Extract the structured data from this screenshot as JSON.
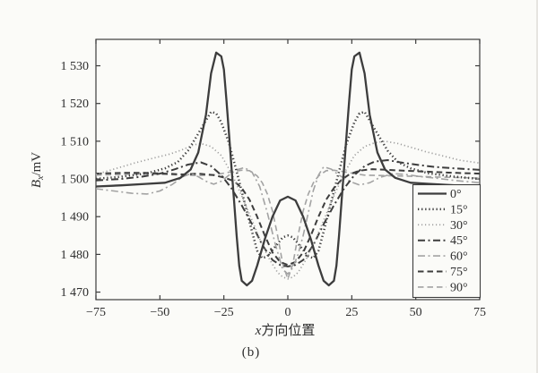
{
  "page": {
    "caption": "(b)"
  },
  "chart_data": {
    "type": "line",
    "title": "",
    "xlabel": {
      "italic": "x",
      "text": "方向位置"
    },
    "ylabel": {
      "base": "B",
      "sub": "x",
      "unit": "/mV"
    },
    "xlim": [
      -75,
      75
    ],
    "ylim": [
      1468,
      1537
    ],
    "grid": false,
    "axis_color": "#3c3c3c",
    "plot_bg": "#fbfbf8",
    "legend": {
      "position": "inside lower right"
    },
    "xticks": [
      {
        "v": -75,
        "label": "−75"
      },
      {
        "v": -50,
        "label": "−50"
      },
      {
        "v": -25,
        "label": "−25"
      },
      {
        "v": 0,
        "label": "0"
      },
      {
        "v": 25,
        "label": "25"
      },
      {
        "v": 50,
        "label": "50"
      },
      {
        "v": 75,
        "label": "75"
      }
    ],
    "yticks": [
      {
        "v": 1470,
        "label": "1 470"
      },
      {
        "v": 1480,
        "label": "1 480"
      },
      {
        "v": 1490,
        "label": "1 490"
      },
      {
        "v": 1500,
        "label": "1 500"
      },
      {
        "v": 1510,
        "label": "1 510"
      },
      {
        "v": 1520,
        "label": "1 520"
      },
      {
        "v": 1530,
        "label": "1 530"
      }
    ],
    "series": [
      {
        "name": "0°",
        "color": "#3d3d3d",
        "width": 2.3,
        "dash": "",
        "points": [
          [
            -75,
            1498
          ],
          [
            -65,
            1498.3
          ],
          [
            -55,
            1498.7
          ],
          [
            -48,
            1499
          ],
          [
            -42,
            1500.3
          ],
          [
            -38,
            1502.5
          ],
          [
            -35,
            1507
          ],
          [
            -32,
            1517
          ],
          [
            -30,
            1528
          ],
          [
            -28,
            1533.5
          ],
          [
            -26,
            1532.5
          ],
          [
            -25,
            1529
          ],
          [
            -24,
            1521
          ],
          [
            -23,
            1512
          ],
          [
            -22,
            1503
          ],
          [
            -21,
            1494
          ],
          [
            -20,
            1485
          ],
          [
            -19,
            1477
          ],
          [
            -18,
            1473
          ],
          [
            -16,
            1471.8
          ],
          [
            -14,
            1473
          ],
          [
            -12,
            1477
          ],
          [
            -9,
            1484
          ],
          [
            -6,
            1490
          ],
          [
            -3,
            1494.3
          ],
          [
            0,
            1495.3
          ],
          [
            3,
            1494.3
          ],
          [
            6,
            1490
          ],
          [
            9,
            1484
          ],
          [
            12,
            1477
          ],
          [
            14,
            1473
          ],
          [
            16,
            1471.8
          ],
          [
            18,
            1473
          ],
          [
            19,
            1477
          ],
          [
            20,
            1485
          ],
          [
            21,
            1494
          ],
          [
            22,
            1503
          ],
          [
            23,
            1512
          ],
          [
            24,
            1521
          ],
          [
            25,
            1529
          ],
          [
            26,
            1532.5
          ],
          [
            28,
            1533.5
          ],
          [
            30,
            1528
          ],
          [
            32,
            1517
          ],
          [
            35,
            1507
          ],
          [
            38,
            1502.5
          ],
          [
            42,
            1500.3
          ],
          [
            48,
            1499
          ],
          [
            55,
            1498.7
          ],
          [
            65,
            1498.3
          ],
          [
            75,
            1498
          ]
        ]
      },
      {
        "name": "15°",
        "color": "#3d3d3d",
        "width": 2.5,
        "dash": "1.3 2.8",
        "points": [
          [
            -75,
            1500
          ],
          [
            -65,
            1500.6
          ],
          [
            -55,
            1501.5
          ],
          [
            -48,
            1502.8
          ],
          [
            -43,
            1504.5
          ],
          [
            -39,
            1507.5
          ],
          [
            -35,
            1512
          ],
          [
            -32,
            1515.5
          ],
          [
            -30,
            1517.8
          ],
          [
            -28,
            1517.4
          ],
          [
            -26,
            1515
          ],
          [
            -23,
            1509.5
          ],
          [
            -20,
            1502
          ],
          [
            -17,
            1494
          ],
          [
            -14,
            1486
          ],
          [
            -12,
            1481
          ],
          [
            -10,
            1479
          ],
          [
            -8,
            1479.5
          ],
          [
            -5,
            1482
          ],
          [
            -2,
            1484.5
          ],
          [
            0,
            1485
          ],
          [
            2,
            1484.5
          ],
          [
            5,
            1482
          ],
          [
            8,
            1479.5
          ],
          [
            10,
            1479
          ],
          [
            12,
            1481
          ],
          [
            14,
            1486
          ],
          [
            17,
            1494
          ],
          [
            20,
            1502
          ],
          [
            23,
            1509.5
          ],
          [
            26,
            1515
          ],
          [
            28,
            1517.4
          ],
          [
            30,
            1517.8
          ],
          [
            32,
            1515.5
          ],
          [
            35,
            1512
          ],
          [
            39,
            1507.5
          ],
          [
            43,
            1504.5
          ],
          [
            48,
            1502.8
          ],
          [
            55,
            1501.5
          ],
          [
            65,
            1500.6
          ],
          [
            75,
            1500
          ]
        ]
      },
      {
        "name": "30°",
        "color": "#9e9e9e",
        "width": 1.7,
        "dash": "1.2 2.8",
        "points": [
          [
            -75,
            1501.2
          ],
          [
            -68,
            1502.6
          ],
          [
            -60,
            1504.2
          ],
          [
            -52,
            1505.6
          ],
          [
            -46,
            1506.6
          ],
          [
            -41,
            1507.8
          ],
          [
            -37,
            1509
          ],
          [
            -34,
            1509.4
          ],
          [
            -30,
            1508.6
          ],
          [
            -26,
            1506.2
          ],
          [
            -22,
            1501.5
          ],
          [
            -18,
            1495.5
          ],
          [
            -14,
            1489
          ],
          [
            -10,
            1482.5
          ],
          [
            -7,
            1478.5
          ],
          [
            -4,
            1475.2
          ],
          [
            -2,
            1474
          ],
          [
            0,
            1473.5
          ],
          [
            2,
            1474
          ],
          [
            4,
            1475.2
          ],
          [
            7,
            1478.5
          ],
          [
            10,
            1482.5
          ],
          [
            14,
            1489
          ],
          [
            18,
            1495.5
          ],
          [
            22,
            1501.5
          ],
          [
            26,
            1506.2
          ],
          [
            30,
            1508.6
          ],
          [
            34,
            1509.6
          ],
          [
            38,
            1510
          ],
          [
            43,
            1509.4
          ],
          [
            48,
            1508.4
          ],
          [
            54,
            1507.2
          ],
          [
            60,
            1506.2
          ],
          [
            67,
            1505
          ],
          [
            75,
            1504.2
          ]
        ]
      },
      {
        "name": "45°",
        "color": "#3d3d3d",
        "width": 2.0,
        "dash": "8 3.5 2 3.5",
        "points": [
          [
            -75,
            1499.6
          ],
          [
            -65,
            1500
          ],
          [
            -57,
            1500.6
          ],
          [
            -50,
            1501.4
          ],
          [
            -44,
            1502.6
          ],
          [
            -39,
            1503.8
          ],
          [
            -34,
            1504.4
          ],
          [
            -30,
            1503.4
          ],
          [
            -26,
            1501
          ],
          [
            -22,
            1497.5
          ],
          [
            -18,
            1493
          ],
          [
            -14,
            1488
          ],
          [
            -10,
            1482.5
          ],
          [
            -6,
            1478.5
          ],
          [
            -3,
            1477.2
          ],
          [
            0,
            1476.8
          ],
          [
            3,
            1477.2
          ],
          [
            6,
            1478.5
          ],
          [
            10,
            1482.5
          ],
          [
            14,
            1488
          ],
          [
            18,
            1493
          ],
          [
            22,
            1497.5
          ],
          [
            26,
            1501
          ],
          [
            30,
            1503.4
          ],
          [
            34,
            1504.6
          ],
          [
            39,
            1505
          ],
          [
            44,
            1504.4
          ],
          [
            50,
            1503.8
          ],
          [
            57,
            1503.2
          ],
          [
            65,
            1502.8
          ],
          [
            75,
            1502.4
          ]
        ]
      },
      {
        "name": "60°",
        "color": "#a3a3a3",
        "width": 1.6,
        "dash": "8 3.5 2 3.5",
        "points": [
          [
            -75,
            1497.4
          ],
          [
            -68,
            1496.8
          ],
          [
            -61,
            1496.2
          ],
          [
            -55,
            1496
          ],
          [
            -50,
            1496.8
          ],
          [
            -45,
            1498.6
          ],
          [
            -41,
            1500.6
          ],
          [
            -38,
            1501.4
          ],
          [
            -35,
            1500.6
          ],
          [
            -32,
            1499.4
          ],
          [
            -29,
            1498.6
          ],
          [
            -26,
            1499.4
          ],
          [
            -23,
            1501
          ],
          [
            -20,
            1502.4
          ],
          [
            -17,
            1503
          ],
          [
            -14,
            1501.8
          ],
          [
            -11,
            1498
          ],
          [
            -8,
            1491
          ],
          [
            -5,
            1483
          ],
          [
            -2,
            1476
          ],
          [
            0,
            1474.8
          ],
          [
            2,
            1476.5
          ],
          [
            4,
            1480
          ],
          [
            6,
            1485
          ],
          [
            8,
            1491
          ],
          [
            10,
            1497
          ],
          [
            12,
            1501
          ],
          [
            14,
            1503.2
          ],
          [
            17,
            1502.6
          ],
          [
            20,
            1501
          ],
          [
            24,
            1499.4
          ],
          [
            28,
            1498.4
          ],
          [
            32,
            1499
          ],
          [
            36,
            1500.4
          ],
          [
            41,
            1501.4
          ],
          [
            46,
            1501.2
          ],
          [
            52,
            1500.6
          ],
          [
            58,
            1500.2
          ],
          [
            65,
            1499.6
          ],
          [
            75,
            1499
          ]
        ]
      },
      {
        "name": "75°",
        "color": "#3d3d3d",
        "width": 2.0,
        "dash": "6.5 4",
        "points": [
          [
            -75,
            1501.4
          ],
          [
            -65,
            1501.6
          ],
          [
            -56,
            1501.6
          ],
          [
            -48,
            1501.4
          ],
          [
            -41,
            1501.2
          ],
          [
            -35,
            1501.4
          ],
          [
            -29,
            1501
          ],
          [
            -25,
            1500.4
          ],
          [
            -21,
            1499.4
          ],
          [
            -18,
            1497.6
          ],
          [
            -15,
            1494.5
          ],
          [
            -12,
            1490
          ],
          [
            -9,
            1485
          ],
          [
            -6,
            1480.5
          ],
          [
            -3,
            1478
          ],
          [
            0,
            1477.2
          ],
          [
            3,
            1478
          ],
          [
            6,
            1480.5
          ],
          [
            9,
            1485
          ],
          [
            12,
            1490
          ],
          [
            15,
            1494.5
          ],
          [
            18,
            1497.6
          ],
          [
            21,
            1499.8
          ],
          [
            24,
            1501.2
          ],
          [
            28,
            1502.2
          ],
          [
            33,
            1502.6
          ],
          [
            39,
            1502.4
          ],
          [
            45,
            1502.2
          ],
          [
            52,
            1502
          ],
          [
            59,
            1501.8
          ],
          [
            66,
            1501.6
          ],
          [
            75,
            1501.4
          ]
        ]
      },
      {
        "name": "90°",
        "color": "#a3a3a3",
        "width": 1.6,
        "dash": "6.5 4",
        "points": [
          [
            -75,
            1501
          ],
          [
            -65,
            1501.2
          ],
          [
            -56,
            1501.3
          ],
          [
            -48,
            1501.2
          ],
          [
            -41,
            1501
          ],
          [
            -35,
            1500.9
          ],
          [
            -30,
            1501
          ],
          [
            -26,
            1501.4
          ],
          [
            -22,
            1501.9
          ],
          [
            -18,
            1502.3
          ],
          [
            -15,
            1502.2
          ],
          [
            -12,
            1500.8
          ],
          [
            -10,
            1499
          ],
          [
            -8,
            1496
          ],
          [
            -6,
            1491.5
          ],
          [
            -4,
            1485
          ],
          [
            -2,
            1477.5
          ],
          [
            0,
            1473.5
          ],
          [
            2,
            1477.5
          ],
          [
            4,
            1485
          ],
          [
            6,
            1491.5
          ],
          [
            8,
            1496
          ],
          [
            10,
            1499
          ],
          [
            12,
            1500.8
          ],
          [
            15,
            1502.2
          ],
          [
            18,
            1502.3
          ],
          [
            22,
            1501.9
          ],
          [
            26,
            1501.4
          ],
          [
            30,
            1501
          ],
          [
            36,
            1500.9
          ],
          [
            43,
            1500.8
          ],
          [
            50,
            1500.7
          ],
          [
            58,
            1500.5
          ],
          [
            66,
            1500.4
          ],
          [
            75,
            1500.2
          ]
        ]
      }
    ]
  }
}
